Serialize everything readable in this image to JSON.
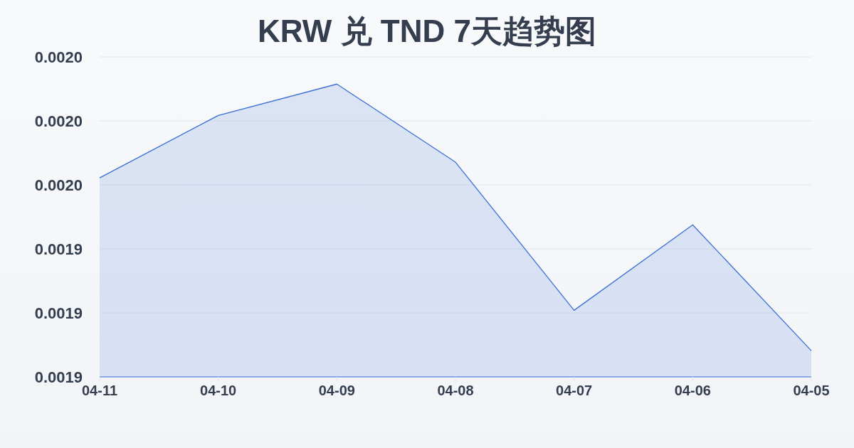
{
  "chart_data": {
    "type": "area",
    "title": "KRW 兑 TND 7天趋势图",
    "categories": [
      "04-11",
      "04-10",
      "04-09",
      "04-08",
      "04-07",
      "04-06",
      "04-05"
    ],
    "series": [
      {
        "color": "#3b6fd6",
        "values": [
          0.0019622,
          0.0019817,
          0.0019915,
          0.0019671,
          0.0019208,
          0.0019475,
          0.0019082
        ]
      }
    ],
    "ylim": [
      0.0019,
      0.002
    ],
    "yticks": [
      {
        "value": 0.0019,
        "label": "0.0019"
      },
      {
        "value": 0.00192,
        "label": "0.0019"
      },
      {
        "value": 0.00194,
        "label": "0.0019"
      },
      {
        "value": 0.00196,
        "label": "0.0020"
      },
      {
        "value": 0.00198,
        "label": "0.0020"
      },
      {
        "value": 0.002,
        "label": "0.0020"
      }
    ],
    "grid": "y",
    "marker": "none"
  }
}
